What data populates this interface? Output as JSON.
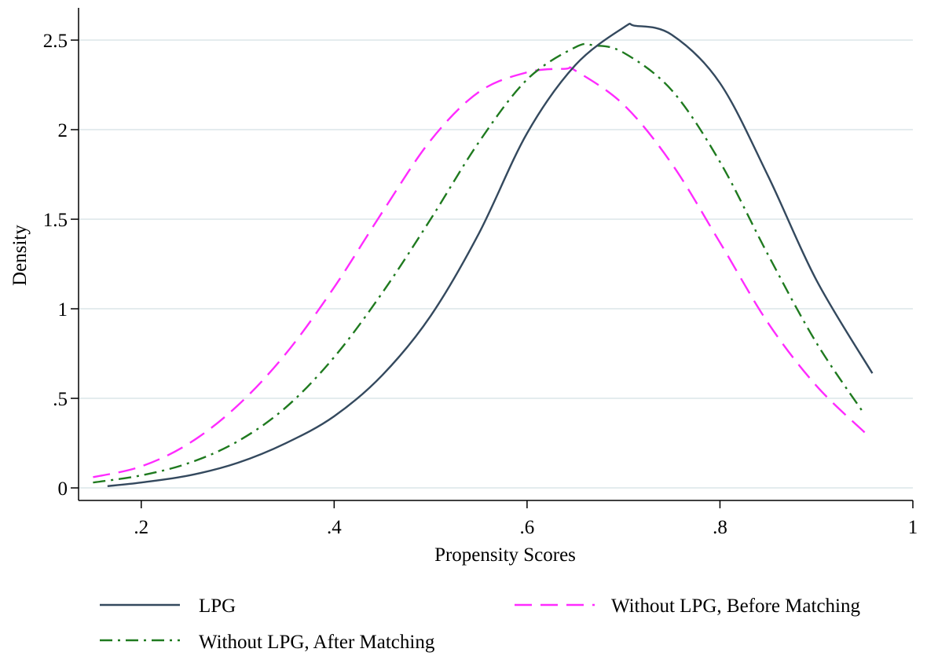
{
  "chart_data": {
    "type": "line",
    "title": "",
    "xlabel": "Propensity Scores",
    "ylabel": "Density",
    "xlim": [
      0.135,
      1.0
    ],
    "ylim": [
      -0.07,
      2.68
    ],
    "xticks": [
      0.2,
      0.4,
      0.6,
      0.8,
      1.0
    ],
    "xtick_labels": [
      ".2",
      ".4",
      ".6",
      ".8",
      "1"
    ],
    "yticks": [
      0,
      0.5,
      1,
      1.5,
      2,
      2.5
    ],
    "ytick_labels": [
      "0",
      ".5",
      "1",
      "1.5",
      "2",
      "2.5"
    ],
    "grid": "horizontal",
    "legend_position": "bottom",
    "series": [
      {
        "name": "LPG",
        "color": "#34495e",
        "style": "solid",
        "x": [
          0.165,
          0.2,
          0.25,
          0.3,
          0.35,
          0.4,
          0.45,
          0.5,
          0.55,
          0.6,
          0.65,
          0.7,
          0.712,
          0.75,
          0.8,
          0.85,
          0.9,
          0.958
        ],
        "y": [
          0.01,
          0.03,
          0.07,
          0.14,
          0.25,
          0.4,
          0.63,
          0.96,
          1.42,
          1.98,
          2.36,
          2.57,
          2.58,
          2.53,
          2.26,
          1.74,
          1.16,
          0.64
        ]
      },
      {
        "name": "Without LPG, After Matching",
        "color": "#1f7a1f",
        "style": "dashdot",
        "x": [
          0.15,
          0.2,
          0.25,
          0.3,
          0.35,
          0.4,
          0.45,
          0.5,
          0.55,
          0.6,
          0.65,
          0.67,
          0.7,
          0.75,
          0.8,
          0.85,
          0.9,
          0.95
        ],
        "y": [
          0.03,
          0.07,
          0.14,
          0.26,
          0.45,
          0.73,
          1.09,
          1.5,
          1.93,
          2.28,
          2.46,
          2.47,
          2.43,
          2.22,
          1.82,
          1.3,
          0.81,
          0.41
        ]
      },
      {
        "name": "Without LPG, Before Matching",
        "color": "#ff2bff",
        "style": "dashed",
        "x": [
          0.15,
          0.2,
          0.25,
          0.3,
          0.35,
          0.4,
          0.45,
          0.5,
          0.55,
          0.6,
          0.64,
          0.65,
          0.7,
          0.75,
          0.8,
          0.85,
          0.9,
          0.95
        ],
        "y": [
          0.06,
          0.12,
          0.25,
          0.46,
          0.75,
          1.12,
          1.54,
          1.94,
          2.21,
          2.32,
          2.34,
          2.33,
          2.14,
          1.81,
          1.37,
          0.92,
          0.57,
          0.31
        ]
      }
    ]
  }
}
